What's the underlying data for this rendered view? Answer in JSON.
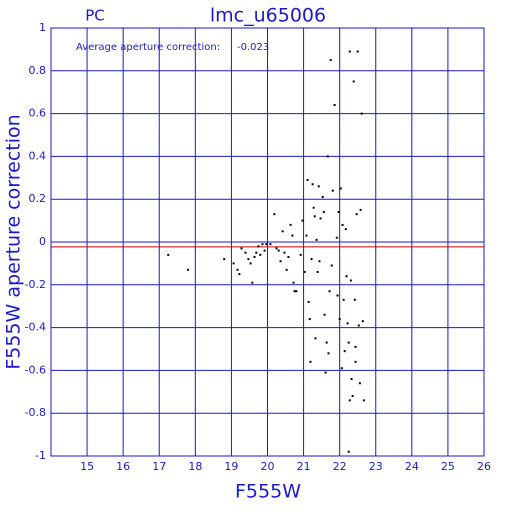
{
  "chart_data": {
    "type": "scatter",
    "label": "PC",
    "title": "lmc_u65006",
    "xlabel": "F555W",
    "ylabel": "F555W aperture correction",
    "annotation": "Average aperture correction:",
    "average": -0.023,
    "average_color": "#cc0000",
    "grid": true,
    "grid_color": "#1a1acc",
    "color": "#000000",
    "xlim": [
      14,
      26
    ],
    "ylim": [
      -1,
      1
    ],
    "xticks": [
      15,
      16,
      17,
      18,
      19,
      20,
      21,
      22,
      23,
      24,
      25,
      26
    ],
    "yticks": [
      -1,
      -0.8,
      -0.6,
      -0.4,
      -0.2,
      0,
      0.2,
      0.4,
      0.6,
      0.8,
      1
    ],
    "x": [
      17.25,
      17.8,
      18.8,
      19.06,
      19.17,
      19.22,
      19.28,
      19.39,
      19.47,
      19.53,
      19.58,
      19.64,
      19.69,
      19.75,
      19.8,
      19.86,
      19.92,
      19.97,
      20.08,
      20.19,
      20.25,
      20.31,
      20.36,
      20.42,
      20.47,
      20.53,
      20.58,
      20.64,
      20.69,
      20.72,
      20.75,
      20.8,
      20.92,
      20.97,
      21.03,
      21.08,
      21.11,
      21.14,
      21.17,
      21.19,
      21.22,
      21.25,
      21.28,
      21.31,
      21.33,
      21.36,
      21.39,
      21.42,
      21.44,
      21.47,
      21.53,
      21.56,
      21.58,
      21.61,
      21.64,
      21.67,
      21.69,
      21.72,
      21.75,
      21.78,
      21.81,
      21.86,
      21.92,
      21.94,
      21.97,
      22.0,
      22.03,
      22.06,
      22.08,
      22.11,
      22.14,
      22.17,
      22.19,
      22.22,
      22.25,
      22.28,
      22.31,
      22.33,
      22.36,
      22.39,
      22.42,
      22.44,
      22.47,
      22.5,
      22.53,
      22.56,
      22.58,
      22.61,
      22.64,
      22.67,
      22.25,
      22.28,
      22.44
    ],
    "values": [
      -0.06,
      -0.13,
      -0.08,
      -0.1,
      -0.13,
      -0.15,
      -0.03,
      -0.05,
      -0.08,
      -0.1,
      -0.19,
      -0.07,
      -0.05,
      -0.02,
      -0.06,
      -0.01,
      -0.04,
      -0.01,
      -0.01,
      0.13,
      -0.03,
      -0.04,
      -0.09,
      0.05,
      -0.05,
      -0.13,
      -0.07,
      0.08,
      0.03,
      -0.19,
      -0.23,
      -0.23,
      -0.06,
      0.1,
      -0.14,
      0.03,
      0.29,
      -0.28,
      -0.36,
      -0.56,
      -0.08,
      0.27,
      0.16,
      0.12,
      -0.45,
      0.01,
      -0.14,
      0.26,
      -0.09,
      0.11,
      0.21,
      0.14,
      -0.34,
      -0.61,
      -0.47,
      0.4,
      -0.52,
      -0.23,
      0.85,
      -0.11,
      0.24,
      0.64,
      0.02,
      -0.25,
      0.14,
      -0.36,
      0.25,
      -0.59,
      0.08,
      -0.27,
      -0.51,
      0.06,
      -0.16,
      -0.38,
      -0.47,
      0.89,
      -0.18,
      -0.64,
      -0.72,
      0.75,
      -0.27,
      -0.56,
      0.13,
      0.89,
      -0.39,
      -0.66,
      0.15,
      0.6,
      -0.37,
      -0.74,
      -0.98,
      -0.74,
      -0.49
    ]
  }
}
